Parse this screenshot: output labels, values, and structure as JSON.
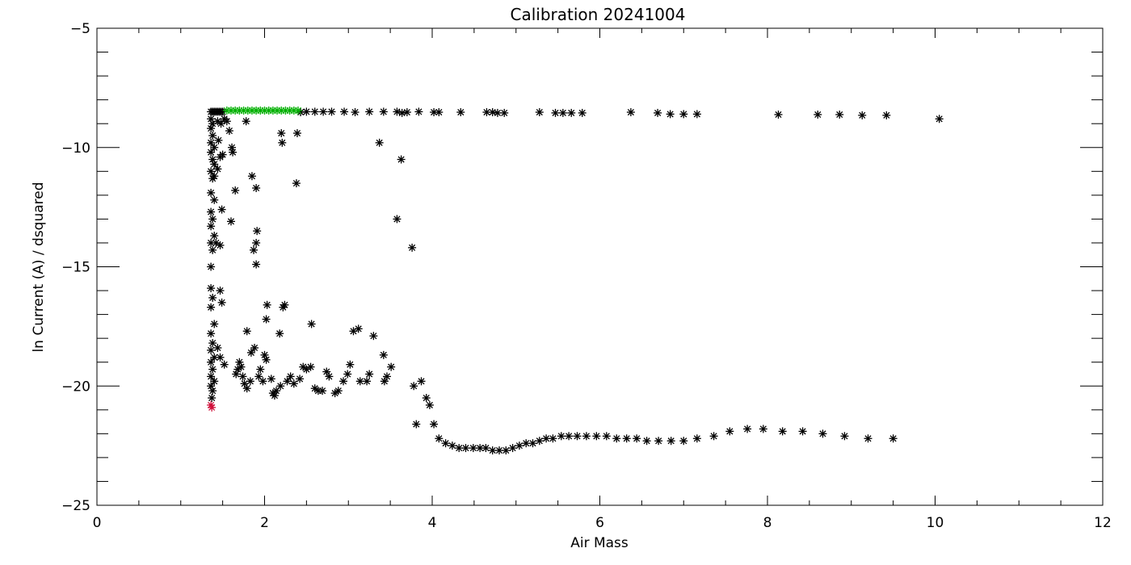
{
  "chart_data": {
    "type": "scatter",
    "title": "Calibration 20241004",
    "xlabel": "Air Mass",
    "ylabel": "ln Current (A) / dsquared",
    "xlim": [
      0,
      12
    ],
    "ylim": [
      -25,
      -5
    ],
    "x_ticks": [
      0,
      2,
      4,
      6,
      8,
      10,
      12
    ],
    "y_ticks": [
      -25,
      -20,
      -15,
      -10,
      -5
    ],
    "x_tick_labels": [
      "0",
      "2",
      "4",
      "6",
      "8",
      "10",
      "12"
    ],
    "y_tick_labels": [
      "−25",
      "−20",
      "−15",
      "−10",
      "−5"
    ],
    "x_minor_step": 0.5,
    "y_minor_step": 1,
    "grid": false,
    "marker": "asterisk",
    "series": [
      {
        "color": "#000000",
        "points": [
          [
            1.36,
            -8.5
          ],
          [
            1.38,
            -8.5
          ],
          [
            1.4,
            -8.5
          ],
          [
            1.42,
            -8.5
          ],
          [
            1.44,
            -8.5
          ],
          [
            1.46,
            -8.5
          ],
          [
            1.48,
            -8.5
          ],
          [
            1.5,
            -8.5
          ],
          [
            2.43,
            -8.52
          ],
          [
            2.5,
            -8.5
          ],
          [
            2.6,
            -8.5
          ],
          [
            2.7,
            -8.5
          ],
          [
            2.8,
            -8.5
          ],
          [
            2.95,
            -8.5
          ],
          [
            3.08,
            -8.52
          ],
          [
            3.25,
            -8.5
          ],
          [
            3.42,
            -8.5
          ],
          [
            3.58,
            -8.5
          ],
          [
            3.64,
            -8.55
          ],
          [
            3.7,
            -8.52
          ],
          [
            3.84,
            -8.5
          ],
          [
            4.02,
            -8.52
          ],
          [
            4.08,
            -8.52
          ],
          [
            4.34,
            -8.52
          ],
          [
            4.65,
            -8.52
          ],
          [
            4.72,
            -8.52
          ],
          [
            4.78,
            -8.55
          ],
          [
            4.86,
            -8.55
          ],
          [
            5.28,
            -8.52
          ],
          [
            5.47,
            -8.55
          ],
          [
            5.56,
            -8.55
          ],
          [
            5.66,
            -8.55
          ],
          [
            5.79,
            -8.55
          ],
          [
            6.37,
            -8.52
          ],
          [
            6.69,
            -8.55
          ],
          [
            6.84,
            -8.6
          ],
          [
            7.0,
            -8.6
          ],
          [
            7.16,
            -8.6
          ],
          [
            8.13,
            -8.62
          ],
          [
            8.6,
            -8.62
          ],
          [
            8.86,
            -8.62
          ],
          [
            9.13,
            -8.65
          ],
          [
            9.42,
            -8.65
          ],
          [
            10.05,
            -8.8
          ],
          [
            1.36,
            -8.8
          ],
          [
            1.38,
            -9.0
          ],
          [
            1.36,
            -9.2
          ],
          [
            1.38,
            -9.5
          ],
          [
            1.36,
            -9.8
          ],
          [
            1.4,
            -10.0
          ],
          [
            1.36,
            -10.2
          ],
          [
            1.38,
            -10.5
          ],
          [
            1.4,
            -10.7
          ],
          [
            1.36,
            -11.0
          ],
          [
            1.38,
            -11.3
          ],
          [
            1.36,
            -11.9
          ],
          [
            1.4,
            -12.2
          ],
          [
            1.36,
            -12.7
          ],
          [
            1.38,
            -13.0
          ],
          [
            1.36,
            -13.3
          ],
          [
            1.4,
            -13.7
          ],
          [
            1.36,
            -14.0
          ],
          [
            1.38,
            -14.3
          ],
          [
            1.36,
            -15.0
          ],
          [
            1.36,
            -15.9
          ],
          [
            1.38,
            -16.3
          ],
          [
            1.36,
            -16.7
          ],
          [
            1.4,
            -17.4
          ],
          [
            1.36,
            -17.8
          ],
          [
            1.38,
            -18.2
          ],
          [
            1.36,
            -18.5
          ],
          [
            1.4,
            -18.8
          ],
          [
            1.36,
            -19.0
          ],
          [
            1.38,
            -19.3
          ],
          [
            1.36,
            -19.6
          ],
          [
            1.4,
            -19.8
          ],
          [
            1.36,
            -20.0
          ],
          [
            1.38,
            -20.2
          ],
          [
            1.37,
            -20.5
          ],
          [
            1.44,
            -8.9
          ],
          [
            1.48,
            -9.0
          ],
          [
            1.52,
            -8.8
          ],
          [
            1.55,
            -8.9
          ],
          [
            1.58,
            -9.3
          ],
          [
            1.45,
            -9.7
          ],
          [
            1.5,
            -10.3
          ],
          [
            1.47,
            -10.4
          ],
          [
            1.61,
            -10.0
          ],
          [
            1.62,
            -10.2
          ],
          [
            1.44,
            -10.9
          ],
          [
            1.4,
            -11.2
          ],
          [
            1.65,
            -11.8
          ],
          [
            1.49,
            -12.6
          ],
          [
            1.6,
            -13.1
          ],
          [
            1.47,
            -14.1
          ],
          [
            1.42,
            -14.0
          ],
          [
            1.47,
            -16.0
          ],
          [
            1.49,
            -16.5
          ],
          [
            1.44,
            -18.4
          ],
          [
            1.47,
            -18.8
          ],
          [
            1.52,
            -19.1
          ],
          [
            1.78,
            -8.9
          ],
          [
            1.85,
            -11.2
          ],
          [
            1.9,
            -11.7
          ],
          [
            1.91,
            -13.5
          ],
          [
            1.9,
            -14.0
          ],
          [
            1.87,
            -14.3
          ],
          [
            1.9,
            -14.9
          ],
          [
            2.2,
            -9.4
          ],
          [
            2.21,
            -9.8
          ],
          [
            2.39,
            -9.4
          ],
          [
            2.38,
            -11.5
          ],
          [
            3.37,
            -9.8
          ],
          [
            3.63,
            -10.5
          ],
          [
            3.58,
            -13.0
          ],
          [
            3.76,
            -14.2
          ],
          [
            2.03,
            -16.6
          ],
          [
            2.02,
            -17.2
          ],
          [
            2.24,
            -16.6
          ],
          [
            2.22,
            -16.7
          ],
          [
            2.18,
            -17.8
          ],
          [
            2.56,
            -17.4
          ],
          [
            1.79,
            -17.7
          ],
          [
            1.88,
            -18.4
          ],
          [
            1.84,
            -18.6
          ],
          [
            2.0,
            -18.7
          ],
          [
            2.02,
            -18.9
          ],
          [
            3.06,
            -17.7
          ],
          [
            3.12,
            -17.6
          ],
          [
            3.3,
            -17.9
          ],
          [
            3.42,
            -18.7
          ],
          [
            3.51,
            -19.2
          ],
          [
            3.02,
            -19.1
          ],
          [
            2.46,
            -19.2
          ],
          [
            2.5,
            -19.3
          ],
          [
            2.55,
            -19.2
          ],
          [
            1.72,
            -19.2
          ],
          [
            1.68,
            -19.3
          ],
          [
            1.66,
            -19.5
          ],
          [
            1.7,
            -19.0
          ],
          [
            1.74,
            -19.6
          ],
          [
            1.76,
            -19.9
          ],
          [
            1.79,
            -20.1
          ],
          [
            1.83,
            -19.8
          ],
          [
            1.93,
            -19.6
          ],
          [
            1.95,
            -19.3
          ],
          [
            1.98,
            -19.8
          ],
          [
            2.08,
            -19.7
          ],
          [
            2.1,
            -20.3
          ],
          [
            2.12,
            -20.4
          ],
          [
            2.14,
            -20.2
          ],
          [
            2.19,
            -20.0
          ],
          [
            2.27,
            -19.8
          ],
          [
            2.31,
            -19.6
          ],
          [
            2.35,
            -19.9
          ],
          [
            2.42,
            -19.7
          ],
          [
            2.6,
            -20.1
          ],
          [
            2.64,
            -20.2
          ],
          [
            2.69,
            -20.2
          ],
          [
            2.74,
            -19.4
          ],
          [
            2.77,
            -19.6
          ],
          [
            2.84,
            -20.3
          ],
          [
            2.88,
            -20.2
          ],
          [
            2.94,
            -19.8
          ],
          [
            2.99,
            -19.5
          ],
          [
            3.14,
            -19.8
          ],
          [
            3.22,
            -19.8
          ],
          [
            3.25,
            -19.5
          ],
          [
            3.43,
            -19.8
          ],
          [
            3.46,
            -19.6
          ],
          [
            3.78,
            -20.0
          ],
          [
            3.87,
            -19.8
          ],
          [
            3.93,
            -20.5
          ],
          [
            3.97,
            -20.8
          ],
          [
            3.81,
            -21.6
          ],
          [
            4.02,
            -21.6
          ],
          [
            4.08,
            -22.2
          ],
          [
            4.16,
            -22.4
          ],
          [
            4.24,
            -22.5
          ],
          [
            4.32,
            -22.6
          ],
          [
            4.4,
            -22.6
          ],
          [
            4.49,
            -22.6
          ],
          [
            4.57,
            -22.6
          ],
          [
            4.64,
            -22.6
          ],
          [
            4.72,
            -22.7
          ],
          [
            4.8,
            -22.7
          ],
          [
            4.88,
            -22.7
          ],
          [
            4.96,
            -22.6
          ],
          [
            5.04,
            -22.5
          ],
          [
            5.12,
            -22.4
          ],
          [
            5.2,
            -22.4
          ],
          [
            5.28,
            -22.3
          ],
          [
            5.36,
            -22.2
          ],
          [
            5.44,
            -22.2
          ],
          [
            5.54,
            -22.1
          ],
          [
            5.63,
            -22.1
          ],
          [
            5.73,
            -22.1
          ],
          [
            5.84,
            -22.1
          ],
          [
            5.96,
            -22.1
          ],
          [
            6.08,
            -22.1
          ],
          [
            6.2,
            -22.2
          ],
          [
            6.32,
            -22.2
          ],
          [
            6.44,
            -22.2
          ],
          [
            6.56,
            -22.3
          ],
          [
            6.7,
            -22.3
          ],
          [
            6.85,
            -22.3
          ],
          [
            7.0,
            -22.3
          ],
          [
            7.16,
            -22.2
          ],
          [
            7.36,
            -22.1
          ],
          [
            7.55,
            -21.9
          ],
          [
            7.76,
            -21.8
          ],
          [
            7.95,
            -21.8
          ],
          [
            8.18,
            -21.9
          ],
          [
            8.42,
            -21.9
          ],
          [
            8.66,
            -22.0
          ],
          [
            8.92,
            -22.1
          ],
          [
            9.2,
            -22.2
          ],
          [
            9.5,
            -22.2
          ]
        ]
      },
      {
        "color": "#00b000",
        "points": [
          [
            1.55,
            -8.45
          ],
          [
            1.6,
            -8.45
          ],
          [
            1.65,
            -8.45
          ],
          [
            1.7,
            -8.45
          ],
          [
            1.75,
            -8.45
          ],
          [
            1.8,
            -8.45
          ],
          [
            1.85,
            -8.45
          ],
          [
            1.9,
            -8.45
          ],
          [
            1.95,
            -8.45
          ],
          [
            2.0,
            -8.45
          ],
          [
            2.05,
            -8.45
          ],
          [
            2.1,
            -8.45
          ],
          [
            2.15,
            -8.45
          ],
          [
            2.2,
            -8.45
          ],
          [
            2.25,
            -8.45
          ],
          [
            2.3,
            -8.45
          ],
          [
            2.35,
            -8.45
          ],
          [
            2.4,
            -8.45
          ]
        ]
      },
      {
        "color": "#d0103a",
        "points": [
          [
            1.36,
            -20.8
          ],
          [
            1.37,
            -20.9
          ]
        ]
      }
    ]
  }
}
